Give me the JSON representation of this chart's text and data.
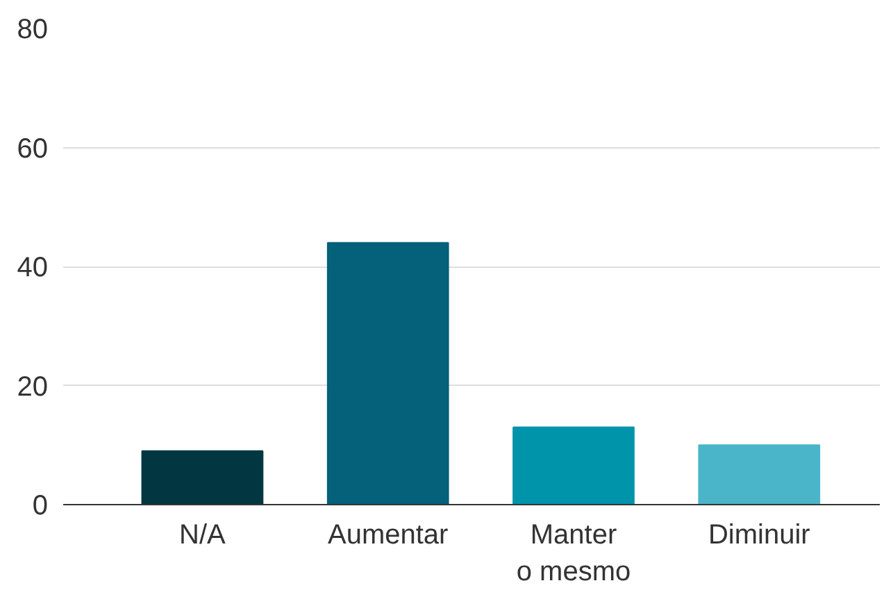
{
  "chart_data": {
    "type": "bar",
    "categories": [
      "N/A",
      "Aumentar",
      "Manter\no mesmo",
      "Diminuir"
    ],
    "values": [
      9,
      44,
      13,
      10
    ],
    "colors": [
      "#023641",
      "#05607a",
      "#0094ab",
      "#4ab5c8"
    ],
    "ylim": [
      0,
      80
    ],
    "yticks": [
      0,
      20,
      40,
      60,
      80
    ],
    "grid": "y"
  }
}
